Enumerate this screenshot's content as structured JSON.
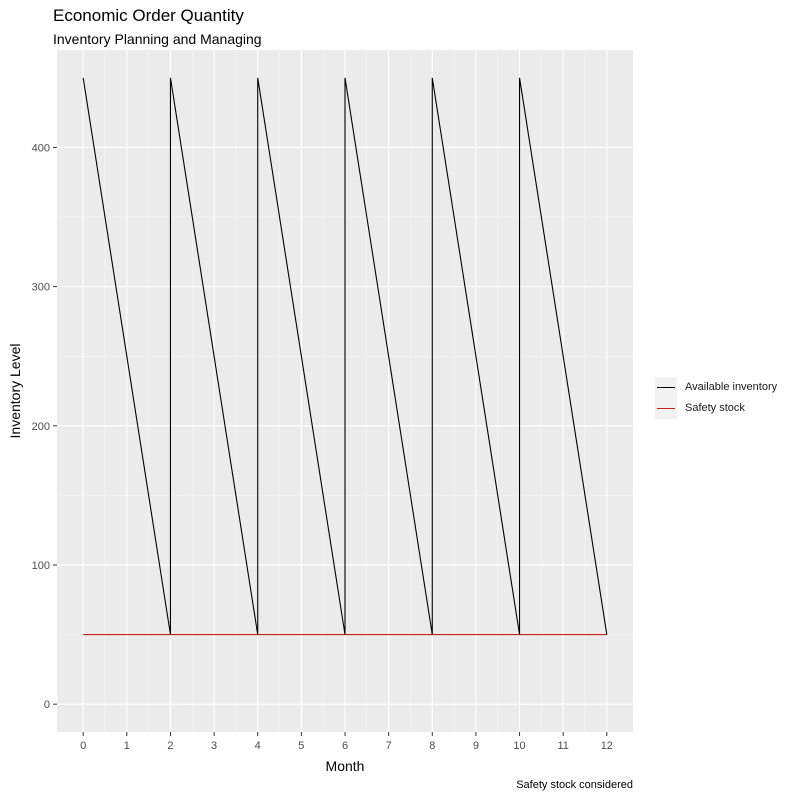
{
  "chart_data": {
    "type": "line",
    "title": "Economic Order Quantity",
    "subtitle": "Inventory Planning and Managing",
    "caption": "Safety stock considered",
    "xlabel": "Month",
    "ylabel": "Inventory Level",
    "xlim": [
      -0.6,
      12.6
    ],
    "ylim": [
      -20,
      470
    ],
    "x_ticks": [
      0,
      1,
      2,
      3,
      4,
      5,
      6,
      7,
      8,
      9,
      10,
      11,
      12
    ],
    "y_ticks": [
      0,
      100,
      200,
      300,
      400
    ],
    "grid": true,
    "legend_position": "right",
    "series": [
      {
        "name": "Available inventory",
        "color": "#000000",
        "x": [
          0,
          2,
          2,
          4,
          4,
          6,
          6,
          8,
          8,
          10,
          10,
          12
        ],
        "y": [
          450,
          50,
          450,
          50,
          450,
          50,
          450,
          50,
          450,
          50,
          450,
          50
        ]
      },
      {
        "name": "Safety stock",
        "color": "#cc1f1f",
        "x": [
          0,
          12
        ],
        "y": [
          50,
          50
        ]
      }
    ]
  }
}
